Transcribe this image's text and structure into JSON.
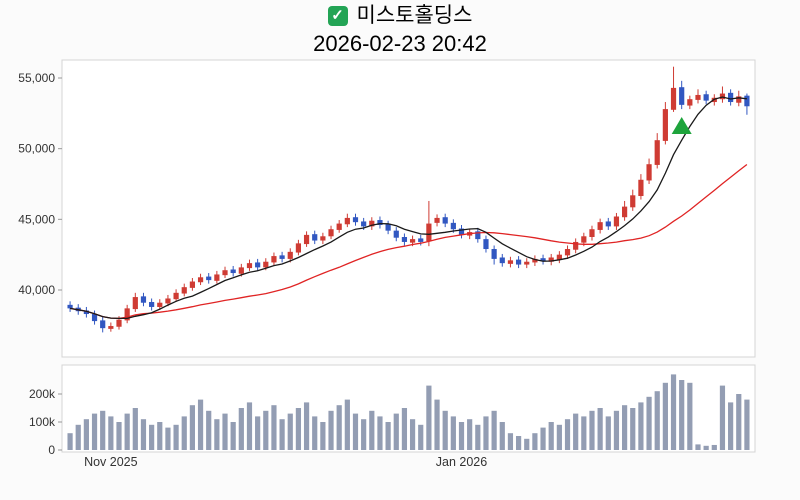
{
  "header": {
    "check_glyph": "✓",
    "title": "미스토홀딩스",
    "timestamp": "2026-02-23 20:42"
  },
  "chart_data": {
    "type": "candlestick",
    "title": "미스토홀딩스",
    "subtitle": "2026-02-23 20:42",
    "y_axis": {
      "ticks": [
        40000,
        45000,
        50000,
        55000
      ],
      "labels": [
        "40,000",
        "45,000",
        "50,000",
        "55,000"
      ],
      "range": [
        36500,
        56500
      ]
    },
    "volume_axis": {
      "ticks": [
        0,
        100000,
        200000
      ],
      "labels": [
        "0",
        "100k",
        "200k"
      ],
      "range": [
        0,
        300000
      ]
    },
    "x_ticks": [
      {
        "index": 5,
        "label": "Nov 2025"
      },
      {
        "index": 48,
        "label": "Jan 2026"
      }
    ],
    "ma_short_window": 7,
    "ma_long_window": 25,
    "marker": {
      "index": 75,
      "price": 51600,
      "shape": "triangle-up",
      "color": "#1ea43c",
      "meaning": "signal-marker"
    },
    "colors": {
      "up": "#cf3b33",
      "down": "#3157c1",
      "ma_short": "#1a1a1a",
      "ma_long": "#e02424",
      "volume": "#939db3",
      "axis_text": "#333333",
      "panel_border": "#d4d4d4"
    },
    "candles": {
      "open": [
        38950,
        38750,
        38550,
        38300,
        37850,
        37250,
        37400,
        37850,
        38650,
        39550,
        39150,
        38800,
        39050,
        39350,
        39750,
        40150,
        40550,
        40950,
        40650,
        41050,
        41450,
        41150,
        41550,
        41950,
        41600,
        41950,
        42450,
        42200,
        42650,
        43250,
        43950,
        43500,
        43800,
        44250,
        44650,
        45150,
        44850,
        44500,
        44950,
        44650,
        44200,
        43750,
        43350,
        43650,
        43450,
        44750,
        45150,
        44750,
        44350,
        43850,
        44150,
        43600,
        42900,
        42300,
        41850,
        42150,
        41800,
        41950,
        42250,
        42000,
        42150,
        42450,
        42850,
        43350,
        43750,
        44250,
        44850,
        44500,
        45150,
        45850,
        46650,
        47750,
        48850,
        50550,
        52750,
        54350,
        53050,
        53450,
        53850,
        53300,
        53500,
        53950,
        53250,
        53750
      ],
      "high": [
        39200,
        39000,
        38800,
        38550,
        38100,
        37700,
        38150,
        38950,
        39800,
        39800,
        39400,
        39350,
        39650,
        40050,
        40450,
        40850,
        41150,
        41200,
        41350,
        41650,
        41700,
        41850,
        42150,
        42200,
        42250,
        42650,
        42700,
        42950,
        43550,
        44150,
        44200,
        44050,
        44550,
        44950,
        45400,
        45400,
        45100,
        45150,
        45200,
        44900,
        44450,
        44000,
        43850,
        43900,
        46300,
        45350,
        45400,
        45000,
        44600,
        44350,
        44400,
        43850,
        43150,
        42550,
        42350,
        42400,
        42250,
        42450,
        42500,
        42550,
        42750,
        43150,
        43650,
        44050,
        44550,
        45050,
        45100,
        45450,
        46300,
        47100,
        48200,
        49300,
        51100,
        53300,
        55800,
        54800,
        53750,
        54200,
        54100,
        53850,
        54400,
        54200,
        54100,
        53900
      ],
      "low": [
        38450,
        38250,
        38050,
        37550,
        37000,
        37050,
        37200,
        37650,
        38450,
        38850,
        38550,
        38600,
        38850,
        39150,
        39550,
        39950,
        40350,
        40450,
        40450,
        40850,
        40950,
        40950,
        41350,
        41350,
        41400,
        41750,
        41950,
        41950,
        42450,
        43050,
        43250,
        43250,
        43600,
        44050,
        44450,
        44550,
        44250,
        44250,
        44350,
        43950,
        43450,
        43150,
        43100,
        43150,
        43100,
        44500,
        44450,
        44050,
        43650,
        43600,
        43350,
        42650,
        41800,
        41650,
        41600,
        41550,
        41550,
        41700,
        41800,
        41750,
        41900,
        42200,
        42600,
        43100,
        43500,
        44000,
        44250,
        44250,
        44900,
        45600,
        46400,
        47500,
        48600,
        50300,
        52600,
        52800,
        52800,
        53200,
        53150,
        53050,
        53250,
        53050,
        53000,
        52400
      ],
      "close": [
        38700,
        38500,
        38300,
        37800,
        37300,
        37450,
        37900,
        38700,
        39500,
        39100,
        38800,
        39100,
        39400,
        39800,
        40200,
        40600,
        40900,
        40700,
        41100,
        41400,
        41200,
        41600,
        41900,
        41600,
        42000,
        42400,
        42200,
        42700,
        43300,
        43900,
        43500,
        43800,
        44300,
        44700,
        45100,
        44800,
        44500,
        44900,
        44600,
        44200,
        43700,
        43400,
        43600,
        43400,
        44700,
        45100,
        44700,
        44300,
        43900,
        44100,
        43600,
        42900,
        42200,
        41900,
        42100,
        41800,
        42000,
        42200,
        42050,
        42300,
        42500,
        42900,
        43400,
        43800,
        44300,
        44800,
        44500,
        45200,
        45900,
        46700,
        47800,
        48900,
        50600,
        52800,
        54300,
        53100,
        53500,
        53800,
        53400,
        53600,
        53900,
        53300,
        53700,
        53000
      ],
      "volume": [
        60000,
        90000,
        110000,
        130000,
        140000,
        120000,
        100000,
        130000,
        150000,
        110000,
        90000,
        100000,
        80000,
        90000,
        120000,
        160000,
        180000,
        140000,
        110000,
        130000,
        100000,
        150000,
        170000,
        120000,
        140000,
        160000,
        110000,
        130000,
        150000,
        170000,
        120000,
        100000,
        140000,
        160000,
        180000,
        130000,
        110000,
        140000,
        120000,
        100000,
        130000,
        150000,
        110000,
        90000,
        230000,
        180000,
        140000,
        120000,
        100000,
        110000,
        90000,
        120000,
        140000,
        100000,
        60000,
        50000,
        40000,
        60000,
        80000,
        100000,
        90000,
        110000,
        130000,
        120000,
        140000,
        150000,
        120000,
        140000,
        160000,
        150000,
        170000,
        190000,
        210000,
        240000,
        270000,
        250000,
        240000,
        20000,
        15000,
        18000,
        230000,
        170000,
        200000,
        180000
      ]
    }
  }
}
